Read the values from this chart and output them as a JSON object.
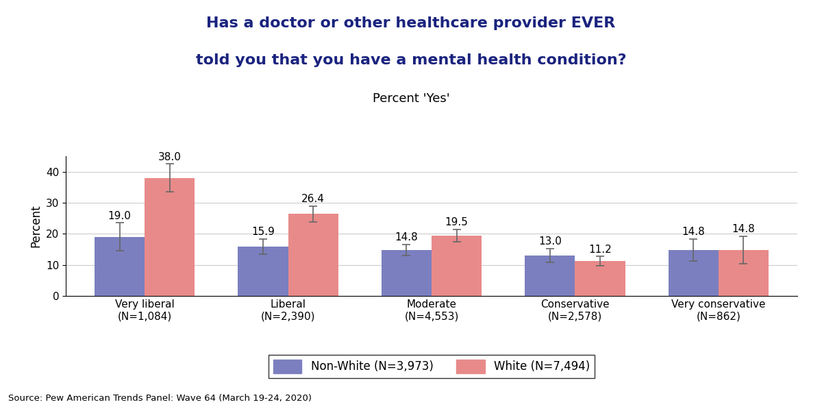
{
  "title_line1": "Has a doctor or other healthcare provider EVER",
  "title_line2": "told you that you have a mental health condition?",
  "subtitle": "Percent 'Yes'",
  "ylabel": "Percent",
  "categories": [
    "Very liberal\n(N=1,084)",
    "Liberal\n(N=2,390)",
    "Moderate\n(N=4,553)",
    "Conservative\n(N=2,578)",
    "Very conservative\n(N=862)"
  ],
  "nonwhite_values": [
    19.0,
    15.9,
    14.8,
    13.0,
    14.8
  ],
  "white_values": [
    38.0,
    26.4,
    19.5,
    11.2,
    14.8
  ],
  "nonwhite_errors": [
    4.5,
    2.5,
    1.8,
    2.2,
    3.5
  ],
  "white_errors": [
    4.5,
    2.5,
    2.0,
    1.5,
    4.5
  ],
  "nonwhite_color": "#7b7fbf",
  "white_color": "#e88a8a",
  "nonwhite_label": "Non-White (N=3,973)",
  "white_label": "White (N=7,494)",
  "ylim": [
    0,
    45
  ],
  "yticks": [
    0,
    10,
    20,
    30,
    40
  ],
  "source_text": "Source: Pew American Trends Panel: Wave 64 (March 19-24, 2020)",
  "bar_width": 0.35,
  "title_color": "#1a237e",
  "subtitle_color": "#000000",
  "background_color": "#ffffff",
  "grid_color": "#cccccc"
}
